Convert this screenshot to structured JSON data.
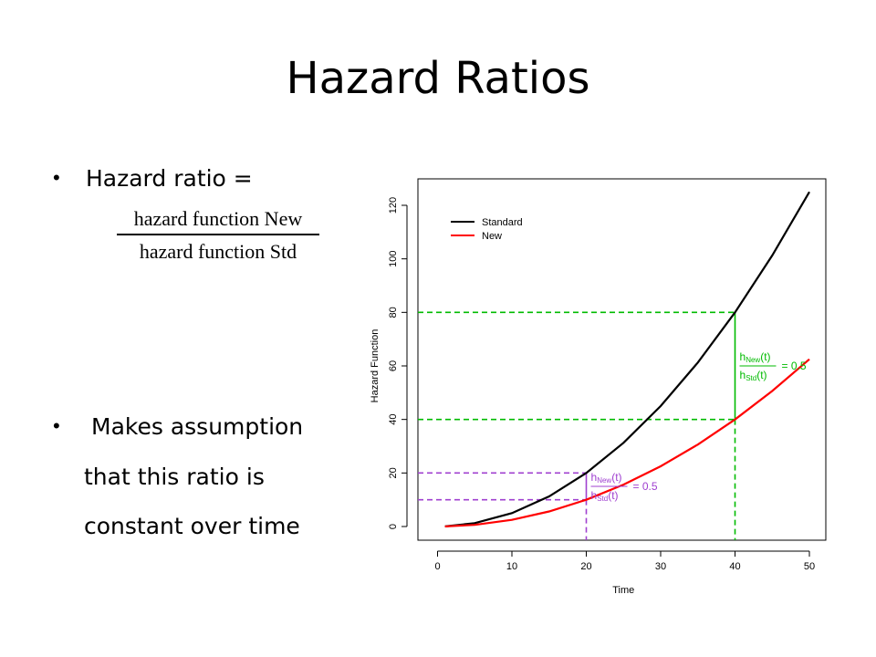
{
  "slide": {
    "title": "Hazard Ratios",
    "bullet1": "Hazard ratio =",
    "fraction": {
      "numerator": "hazard function New",
      "denominator": "hazard function Std"
    },
    "bullet2_lines": [
      "Makes assumption",
      "that this ratio is",
      "constant over time"
    ]
  },
  "chart_data": {
    "type": "line",
    "xlabel": "Time",
    "ylabel": "Hazard Function",
    "xlim": [
      0,
      50
    ],
    "ylim": [
      0,
      120
    ],
    "xticks": [
      0,
      10,
      20,
      30,
      40,
      50
    ],
    "yticks": [
      0,
      20,
      40,
      60,
      80,
      100,
      120
    ],
    "legend_position": "top-left",
    "series": [
      {
        "name": "Standard",
        "color": "#000000",
        "x": [
          1,
          5,
          10,
          15,
          20,
          25,
          30,
          35,
          40,
          45,
          50
        ],
        "values": [
          0.05,
          1.25,
          5,
          11.25,
          20,
          31.25,
          45,
          61.25,
          80,
          101.25,
          125
        ]
      },
      {
        "name": "New",
        "color": "#ff0000",
        "x": [
          1,
          5,
          10,
          15,
          20,
          25,
          30,
          35,
          40,
          45,
          50
        ],
        "values": [
          0.025,
          0.625,
          2.5,
          5.625,
          10,
          15.625,
          22.5,
          30.625,
          40,
          50.625,
          62.5
        ]
      }
    ],
    "annotations": [
      {
        "x": 40,
        "y_std": 80,
        "y_new": 40,
        "color": "#00bb00",
        "num": "h",
        "num_sub": "New",
        "num_tail": "(t)",
        "den": "h",
        "den_sub": "Std",
        "den_tail": "(t)",
        "rhs": "= 0.5"
      },
      {
        "x": 20,
        "y_std": 20,
        "y_new": 10,
        "color": "#a040d0",
        "num": "h",
        "num_sub": "New",
        "num_tail": "(t)",
        "den": "h",
        "den_sub": "Std",
        "den_tail": "(t)",
        "rhs": "= 0.5"
      }
    ]
  }
}
